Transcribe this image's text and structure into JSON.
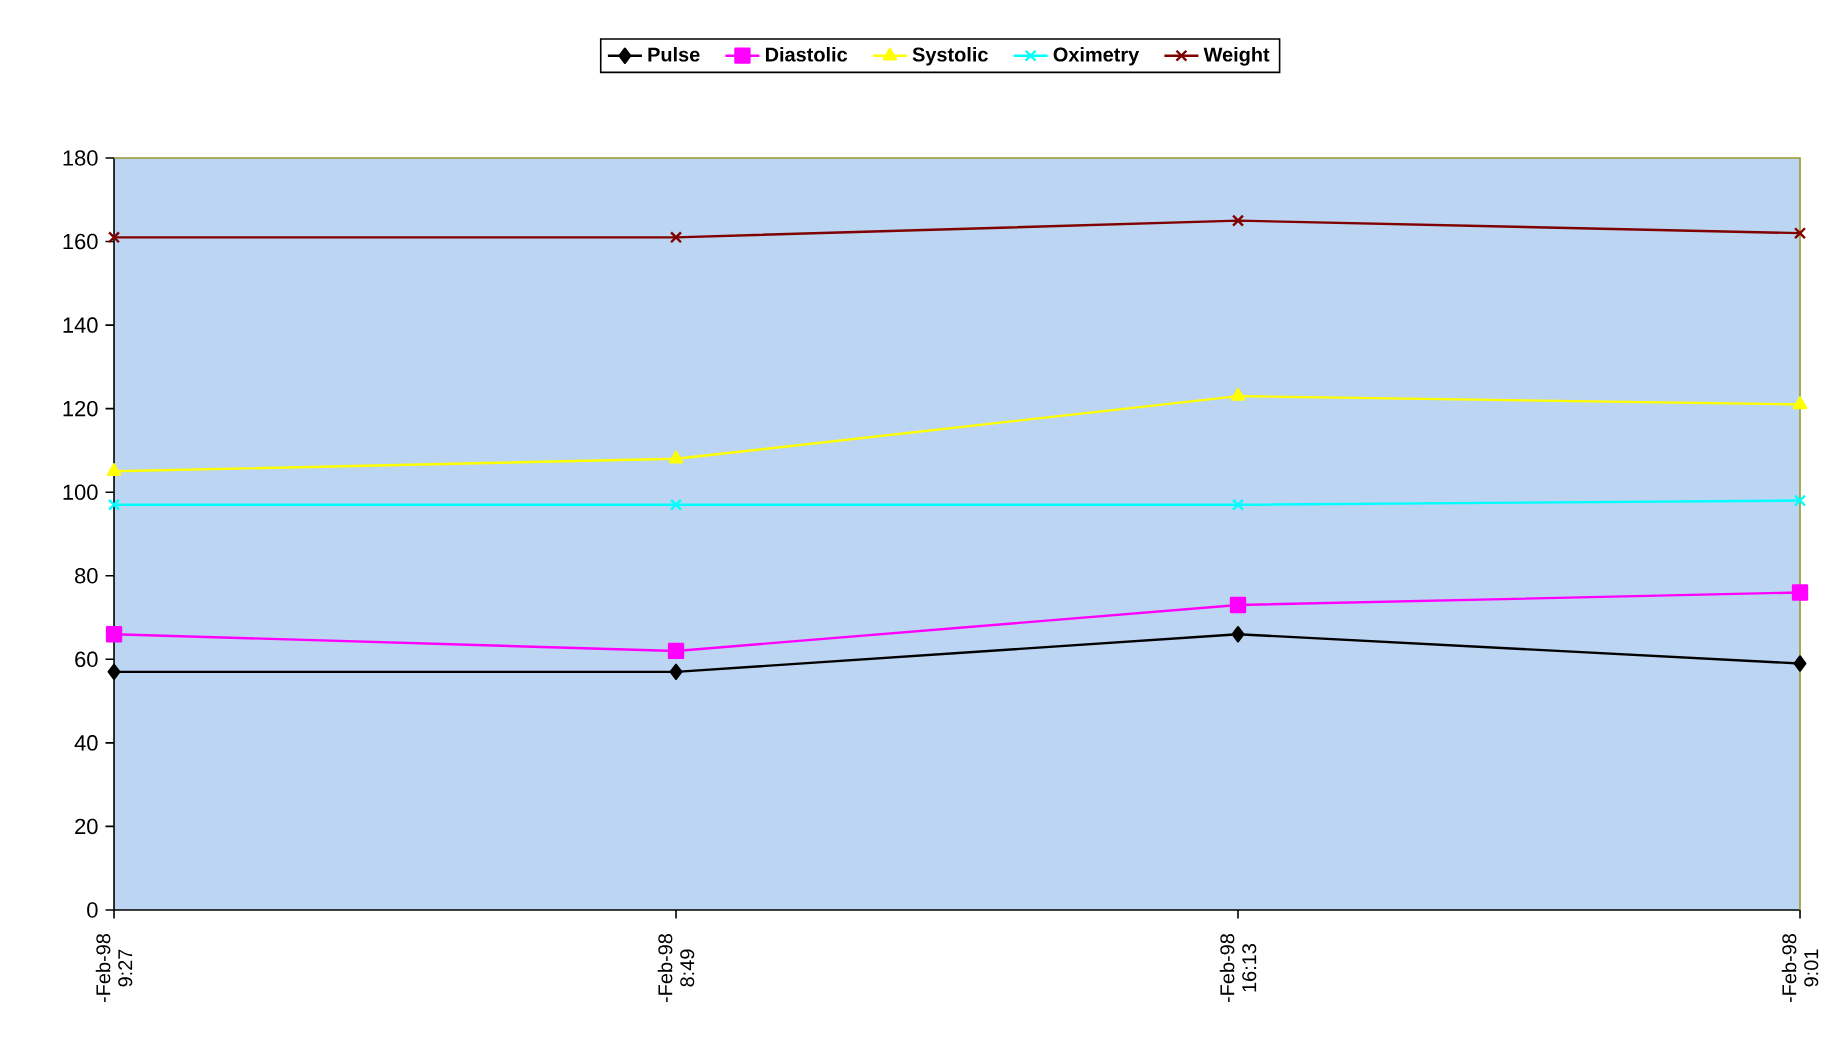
{
  "chart_data": {
    "type": "line",
    "categories": [
      "-Feb-98 9:27",
      "-Feb-98 8:49",
      "-Feb-98 16:13",
      "-Feb-98 9:01"
    ],
    "series": [
      {
        "name": "Pulse",
        "color": "#000000",
        "marker": "diamond",
        "values": [
          57,
          57,
          66,
          59
        ]
      },
      {
        "name": "Diastolic",
        "color": "#ff00ff",
        "marker": "square",
        "values": [
          66,
          62,
          73,
          76
        ]
      },
      {
        "name": "Systolic",
        "color": "#ffff00",
        "marker": "triangle",
        "values": [
          105,
          108,
          123,
          121
        ]
      },
      {
        "name": "Oximetry",
        "color": "#00ffff",
        "marker": "cross",
        "values": [
          97,
          97,
          97,
          98
        ]
      },
      {
        "name": "Weight",
        "color": "#800000",
        "marker": "cross",
        "values": [
          161,
          161,
          165,
          162
        ]
      }
    ],
    "ylim": [
      0,
      180
    ],
    "yticks": [
      0,
      20,
      40,
      60,
      80,
      100,
      120,
      140,
      160,
      180
    ],
    "grid": false,
    "legend": "top",
    "line_style": "solid"
  }
}
